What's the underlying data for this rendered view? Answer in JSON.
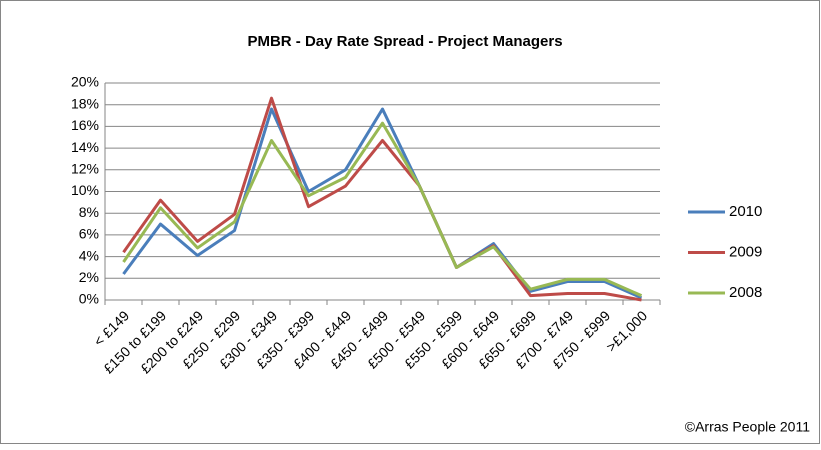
{
  "chart_data": {
    "type": "line",
    "title": "PMBR - Day Rate Spread - Project Managers",
    "categories": [
      "< £149",
      "£150 to £199",
      "£200 to £249",
      "£250 - £299",
      "£300 - £349",
      "£350 - £399",
      "£400 - £449",
      "£450 - £499",
      "£500 - £549",
      "£550 - £599",
      "£600 - £649",
      "£650 - £699",
      "£700 - £749",
      "£750 - £999",
      ">£1,000"
    ],
    "series": [
      {
        "name": "2010",
        "color": "#4a7ebb",
        "values": [
          2.4,
          7,
          4.1,
          6.4,
          17.6,
          10,
          12,
          17.6,
          10.5,
          3,
          5.2,
          0.8,
          1.7,
          1.7,
          0.2
        ]
      },
      {
        "name": "2009",
        "color": "#be4b48",
        "values": [
          4.4,
          9.2,
          5.4,
          7.9,
          18.6,
          8.6,
          10.5,
          14.7,
          10.5,
          3,
          5,
          0.4,
          0.6,
          0.6,
          0
        ]
      },
      {
        "name": "2008",
        "color": "#98b954",
        "values": [
          3.5,
          8.5,
          4.8,
          7.2,
          14.7,
          9.6,
          11.3,
          16.3,
          10.5,
          3,
          4.9,
          1,
          1.9,
          1.9,
          0.4
        ]
      }
    ],
    "ylim": [
      0,
      20
    ],
    "yticks": [
      {
        "value": 0,
        "label": "0%"
      },
      {
        "value": 2,
        "label": "2%"
      },
      {
        "value": 4,
        "label": "4%"
      },
      {
        "value": 6,
        "label": "6%"
      },
      {
        "value": 8,
        "label": "8%"
      },
      {
        "value": 10,
        "label": "10%"
      },
      {
        "value": 12,
        "label": "12%"
      },
      {
        "value": 14,
        "label": "14%"
      },
      {
        "value": 16,
        "label": "16%"
      },
      {
        "value": 18,
        "label": "18%"
      },
      {
        "value": 20,
        "label": "20%"
      }
    ],
    "grid": true,
    "legend": "right",
    "annotation": "©Arras People 2011"
  }
}
